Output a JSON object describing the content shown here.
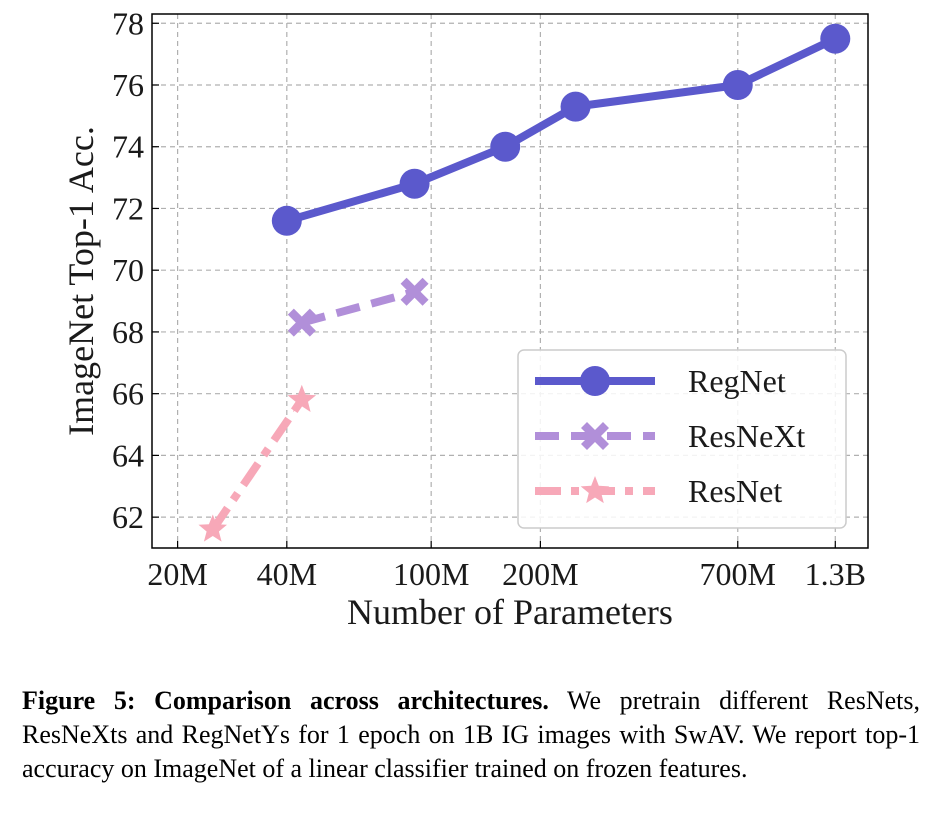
{
  "chart_data": {
    "type": "line",
    "xlabel": "Number of Parameters",
    "ylabel": "ImageNet Top-1 Acc.",
    "x_scale": "log",
    "xlim": [
      17000000,
      1600000000
    ],
    "ylim": [
      61,
      78.3
    ],
    "xticks": [
      {
        "value": 20000000,
        "label": "20M"
      },
      {
        "value": 40000000,
        "label": "40M"
      },
      {
        "value": 100000000,
        "label": "100M"
      },
      {
        "value": 200000000,
        "label": "200M"
      },
      {
        "value": 700000000,
        "label": "700M"
      },
      {
        "value": 1300000000,
        "label": "1.3B"
      }
    ],
    "yticks": [
      {
        "value": 62,
        "label": "62"
      },
      {
        "value": 64,
        "label": "64"
      },
      {
        "value": 66,
        "label": "66"
      },
      {
        "value": 68,
        "label": "68"
      },
      {
        "value": 70,
        "label": "70"
      },
      {
        "value": 72,
        "label": "72"
      },
      {
        "value": 74,
        "label": "74"
      },
      {
        "value": 76,
        "label": "76"
      },
      {
        "value": 78,
        "label": "78"
      }
    ],
    "grid": true,
    "legend_position": "lower-right",
    "series": [
      {
        "name": "RegNet",
        "color": "#5b59cc",
        "marker": "circle",
        "dash": "solid",
        "x": [
          40000000,
          90000000,
          160000000,
          250000000,
          700000000,
          1300000000
        ],
        "y": [
          71.6,
          72.8,
          74.0,
          75.3,
          76.0,
          77.5
        ]
      },
      {
        "name": "ResNeXt",
        "color": "#b18fd9",
        "marker": "x",
        "dash": "dashed",
        "x": [
          44000000,
          90000000
        ],
        "y": [
          68.3,
          69.3
        ]
      },
      {
        "name": "ResNet",
        "color": "#f7a8b8",
        "marker": "star",
        "dash": "dashdot",
        "x": [
          25000000,
          44000000
        ],
        "y": [
          61.6,
          65.8
        ]
      }
    ]
  },
  "caption": {
    "label": "Figure 5:",
    "title": "Comparison across architectures.",
    "text": "We pretrain different ResNets, ResNeXts and RegNetYs for 1 epoch on 1B IG images with SwAV. We report top-1 accuracy on ImageNet of a linear classifier trained on frozen features."
  }
}
